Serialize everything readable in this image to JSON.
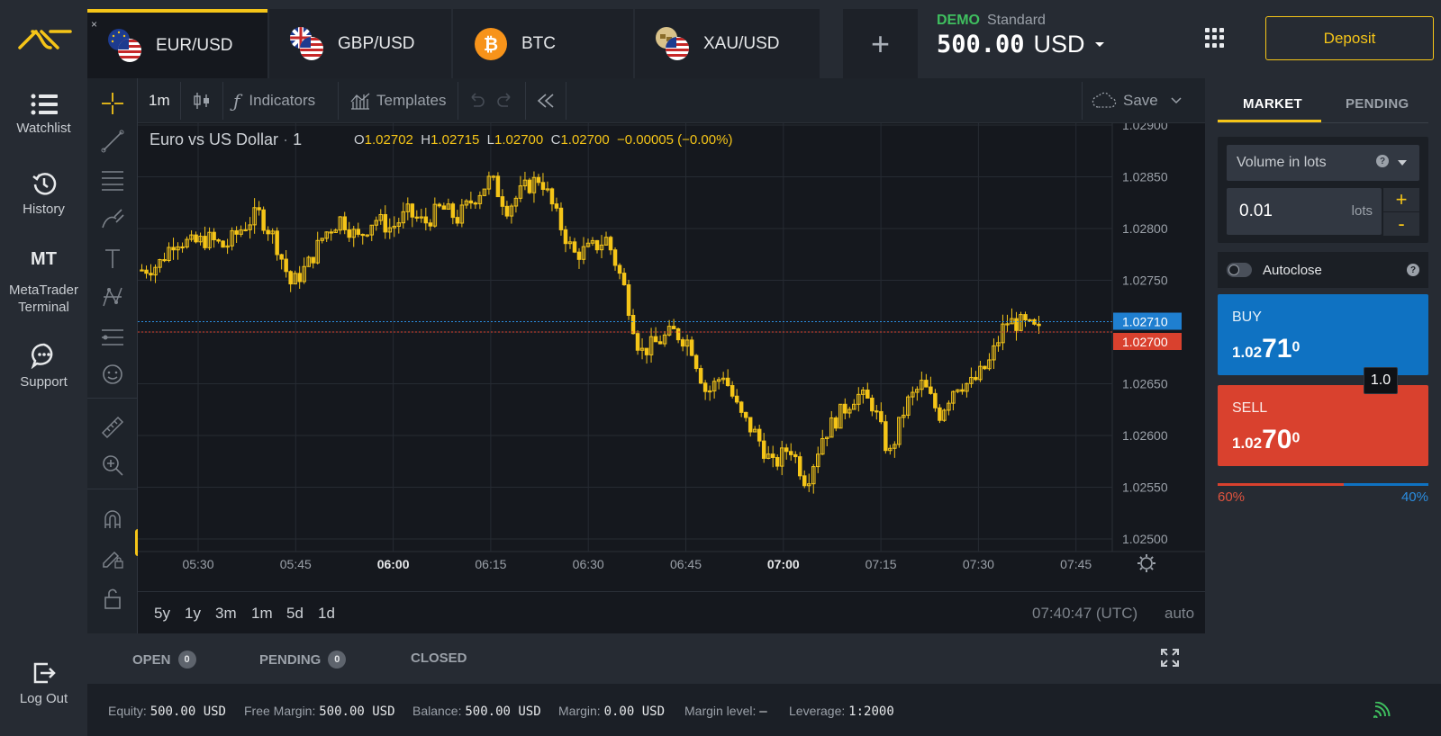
{
  "tabs": [
    {
      "symbol": "EUR/USD",
      "active": true,
      "close": "×"
    },
    {
      "symbol": "GBP/USD",
      "active": false
    },
    {
      "symbol": "BTC",
      "active": false
    },
    {
      "symbol": "XAU/USD",
      "active": false
    }
  ],
  "add_tab": "+",
  "account": {
    "mode": "DEMO",
    "type": "Standard",
    "balance": "500.00",
    "currency": "USD"
  },
  "deposit_label": "Deposit",
  "nav": {
    "watchlist": "Watchlist",
    "history": "History",
    "mt_abbr": "MT",
    "metatrader_line1": "MetaTrader",
    "metatrader_line2": "Terminal",
    "support": "Support",
    "logout": "Log Out"
  },
  "chart_toolbar": {
    "timeframe": "1m",
    "indicators": "Indicators",
    "templates": "Templates",
    "save": "Save"
  },
  "chart_header": {
    "title": "Euro vs US Dollar",
    "interval": "1",
    "o_label": "O",
    "o": "1.02702",
    "h_label": "H",
    "h": "1.02715",
    "l_label": "L",
    "l": "1.02700",
    "c_label": "C",
    "c": "1.02700",
    "change": "−0.00005 (−0.00%)"
  },
  "chart_data": {
    "type": "candlestick",
    "x_ticks": [
      "05:30",
      "05:45",
      "06:00",
      "06:15",
      "06:30",
      "06:45",
      "07:00",
      "07:15",
      "07:30",
      "07:45"
    ],
    "x_ticks_bold": [
      "06:00",
      "07:00"
    ],
    "y_ticks": [
      "1.02900",
      "1.02850",
      "1.02800",
      "1.02750",
      "1.02650",
      "1.02600",
      "1.02550",
      "1.02500"
    ],
    "ylim": [
      1.025,
      1.029
    ],
    "ask_line": "1.02710",
    "bid_line": "1.02700",
    "close_path": [
      1.0276,
      1.02765,
      1.0279,
      1.02785,
      1.0279,
      1.02782,
      1.028,
      1.02815,
      1.0279,
      1.02745,
      1.02765,
      1.02795,
      1.0281,
      1.0279,
      1.0281,
      1.028,
      1.02815,
      1.02805,
      1.0282,
      1.0281,
      1.0283,
      1.02848,
      1.0282,
      1.02838,
      1.0285,
      1.0281,
      1.02775,
      1.0278,
      1.0279,
      1.02745,
      1.0268,
      1.0269,
      1.027,
      1.0269,
      1.0264,
      1.0266,
      1.0262,
      1.026,
      1.0257,
      1.0259,
      1.02555,
      1.026,
      1.0262,
      1.0264,
      1.0263,
      1.0258,
      1.0263,
      1.0265,
      1.0262,
      1.0265,
      1.0265,
      1.0267,
      1.0271,
      1.02708,
      1.027
    ]
  },
  "ranges": [
    "5y",
    "1y",
    "3m",
    "1m",
    "5d",
    "1d"
  ],
  "clock": "07:40:47 (UTC)",
  "scale_mode": "auto",
  "order_panel": {
    "tab_market": "MARKET",
    "tab_pending": "PENDING",
    "volume_mode": "Volume in lots",
    "volume_value": "0.01",
    "volume_unit": "lots",
    "plus": "+",
    "minus": "-",
    "autoclose": "Autoclose",
    "buy_label": "BUY",
    "buy_price_a": "1.02",
    "buy_price_b": "71",
    "buy_price_c": "0",
    "sell_label": "SELL",
    "sell_price_a": "1.02",
    "sell_price_b": "70",
    "sell_price_c": "0",
    "spread": "1.0",
    "sentiment_sell": "60%",
    "sentiment_buy": "40%",
    "sentiment_sell_fraction": 0.6
  },
  "positions": {
    "open_label": "OPEN",
    "open_count": "0",
    "pending_label": "PENDING",
    "pending_count": "0",
    "closed_label": "CLOSED"
  },
  "status": {
    "equity_label": "Equity:",
    "equity": "500.00 USD",
    "free_margin_label": "Free Margin:",
    "free_margin": "500.00 USD",
    "balance_label": "Balance:",
    "balance": "500.00 USD",
    "margin_label": "Margin:",
    "margin": "0.00 USD",
    "margin_level_label": "Margin level:",
    "margin_level": "–",
    "leverage_label": "Leverage:",
    "leverage": "1:2000"
  },
  "colors": {
    "accent": "#f5c518",
    "buy": "#0f72c2",
    "sell": "#d9412e",
    "demo": "#3fbf5f"
  }
}
